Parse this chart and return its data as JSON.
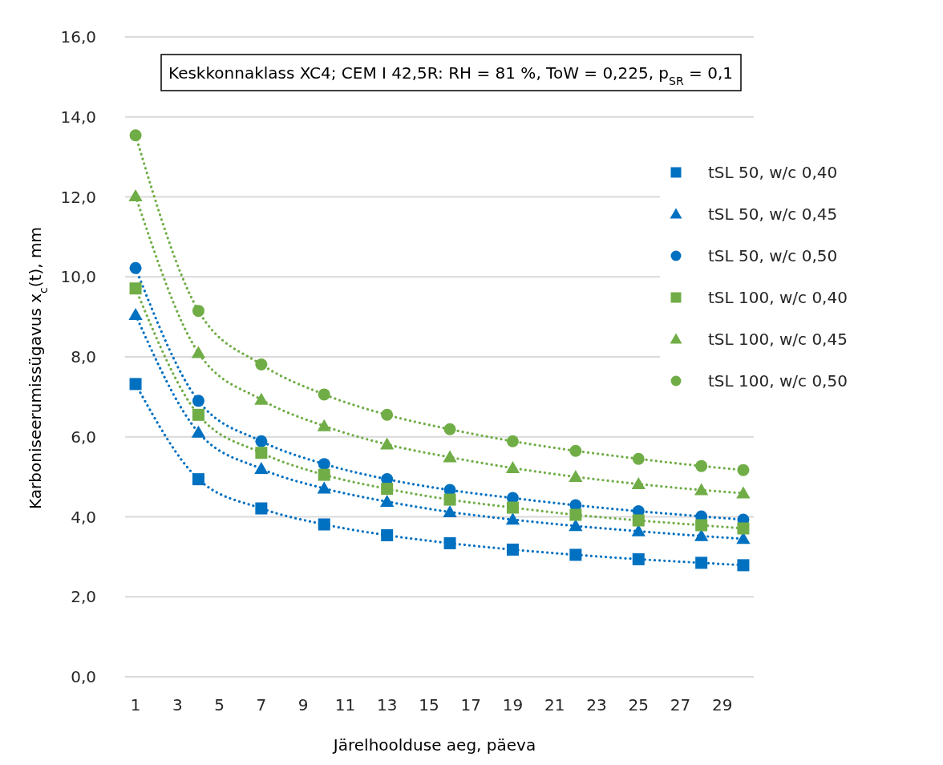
{
  "chart_data": {
    "type": "scatter",
    "title": "Keskkonnaklass XC4; CEM I 42,5R: RH = 81 %, ToW = 0,225, p$_{SR}$ = 0,1",
    "xlabel": "Järelhoolduse aeg, päeva",
    "ylabel": "Karboniseerumissügavus x$_{c}$(t), mm",
    "x": [
      1,
      4,
      7,
      10,
      13,
      16,
      19,
      22,
      25,
      28,
      30
    ],
    "xlim": [
      0.5,
      30.5
    ],
    "xticks": [
      1,
      3,
      5,
      7,
      9,
      11,
      13,
      15,
      17,
      19,
      21,
      23,
      25,
      27,
      29
    ],
    "ylim": [
      0,
      16
    ],
    "yticks": [
      {
        "value": 0,
        "label": "0,0"
      },
      {
        "value": 2,
        "label": "2,0"
      },
      {
        "value": 4,
        "label": "4,0"
      },
      {
        "value": 6,
        "label": "6,0"
      },
      {
        "value": 8,
        "label": "8,0"
      },
      {
        "value": 10,
        "label": "10,0"
      },
      {
        "value": 12,
        "label": "12,0"
      },
      {
        "value": 14,
        "label": "14,0"
      },
      {
        "value": 16,
        "label": "16,0"
      }
    ],
    "grid": "y",
    "legend": "right",
    "series": [
      {
        "name": "tSL 50, w/c 0,40",
        "color": "#0070c0",
        "marker": "square",
        "values": [
          7.32,
          4.94,
          4.21,
          3.81,
          3.54,
          3.34,
          3.18,
          3.05,
          2.94,
          2.85,
          2.79
        ]
      },
      {
        "name": "tSL 50, w/c 0,45",
        "color": "#0070c0",
        "marker": "triangle",
        "values": [
          9.05,
          6.11,
          5.2,
          4.71,
          4.38,
          4.12,
          3.93,
          3.77,
          3.64,
          3.52,
          3.45
        ]
      },
      {
        "name": "tSL 50, w/c 0,50",
        "color": "#0070c0",
        "marker": "circle",
        "values": [
          10.22,
          6.9,
          5.89,
          5.32,
          4.94,
          4.67,
          4.47,
          4.29,
          4.14,
          4.01,
          3.93
        ]
      },
      {
        "name": "tSL 100, w/c 0,40",
        "color": "#70ad47",
        "marker": "square",
        "values": [
          9.71,
          6.55,
          5.6,
          5.05,
          4.7,
          4.43,
          4.23,
          4.05,
          3.91,
          3.79,
          3.71
        ]
      },
      {
        "name": "tSL 100, w/c 0,45",
        "color": "#70ad47",
        "marker": "triangle",
        "values": [
          12.02,
          8.1,
          6.93,
          6.27,
          5.81,
          5.49,
          5.22,
          5.0,
          4.82,
          4.67,
          4.59
        ]
      },
      {
        "name": "tSL 100, w/c 0,50",
        "color": "#70ad47",
        "marker": "circle",
        "values": [
          13.54,
          9.15,
          7.81,
          7.06,
          6.55,
          6.19,
          5.89,
          5.65,
          5.45,
          5.27,
          5.17
        ]
      },
      {
        "type": "line",
        "color": "#0070c0",
        "marker": "none",
        "line_style": "dotted",
        "x": [
          1,
          4,
          7,
          10,
          13,
          16,
          19,
          22,
          25,
          28,
          30
        ],
        "values": [
          7.32,
          4.94,
          4.21,
          3.81,
          3.54,
          3.34,
          3.18,
          3.05,
          2.94,
          2.85,
          2.79
        ]
      },
      {
        "type": "line",
        "color": "#0070c0",
        "marker": "none",
        "line_style": "dotted",
        "x": [
          1,
          4,
          7,
          10,
          13,
          16,
          19,
          22,
          25,
          28,
          30
        ],
        "values": [
          9.05,
          6.11,
          5.2,
          4.71,
          4.38,
          4.12,
          3.93,
          3.77,
          3.64,
          3.52,
          3.45
        ]
      },
      {
        "type": "line",
        "color": "#0070c0",
        "marker": "none",
        "line_style": "dotted",
        "x": [
          1,
          4,
          7,
          10,
          13,
          16,
          19,
          22,
          25,
          28,
          30
        ],
        "values": [
          10.22,
          6.9,
          5.89,
          5.32,
          4.94,
          4.67,
          4.47,
          4.29,
          4.14,
          4.01,
          3.93
        ]
      },
      {
        "type": "line",
        "color": "#70ad47",
        "marker": "none",
        "line_style": "dotted",
        "x": [
          1,
          4,
          7,
          10,
          13,
          16,
          19,
          22,
          25,
          28,
          30
        ],
        "values": [
          9.71,
          6.55,
          5.6,
          5.05,
          4.7,
          4.43,
          4.23,
          4.05,
          3.91,
          3.79,
          3.71
        ]
      },
      {
        "type": "line",
        "color": "#70ad47",
        "marker": "none",
        "line_style": "dotted",
        "x": [
          1,
          4,
          7,
          10,
          13,
          16,
          19,
          22,
          25,
          28,
          30
        ],
        "values": [
          12.02,
          8.1,
          6.93,
          6.27,
          5.81,
          5.49,
          5.22,
          5.0,
          4.82,
          4.67,
          4.59
        ]
      },
      {
        "type": "line",
        "color": "#70ad47",
        "marker": "none",
        "line_style": "dotted",
        "x": [
          1,
          4,
          7,
          10,
          13,
          16,
          19,
          22,
          25,
          28,
          30
        ],
        "values": [
          13.54,
          9.15,
          7.81,
          7.06,
          6.55,
          6.19,
          5.89,
          5.65,
          5.45,
          5.27,
          5.17
        ]
      }
    ]
  }
}
